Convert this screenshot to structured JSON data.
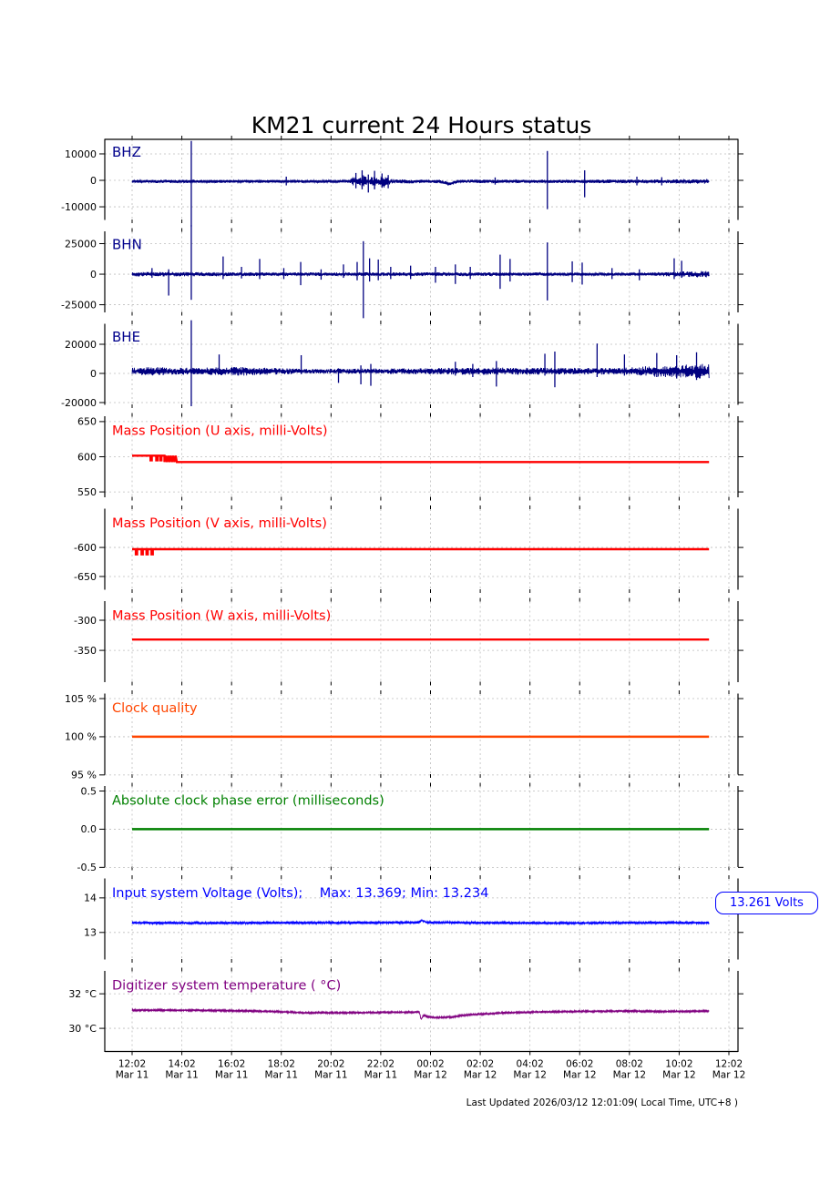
{
  "title": "KM21 current 24 Hours status",
  "footer": "Last Updated 2026/03/12 12:01:09( Local Time, UTC+8 )",
  "annotation": {
    "text": "13.261 Volts",
    "color": "#0000ff"
  },
  "chart_data": {
    "type": "line",
    "title": "KM21 current 24 Hours status",
    "grid": true,
    "x_axis": {
      "hours_span": 24,
      "data_end_hours": 23.2,
      "ticks": [
        {
          "time": "12:02",
          "date": "Mar 11"
        },
        {
          "time": "14:02",
          "date": "Mar 11"
        },
        {
          "time": "16:02",
          "date": "Mar 11"
        },
        {
          "time": "18:02",
          "date": "Mar 11"
        },
        {
          "time": "20:02",
          "date": "Mar 11"
        },
        {
          "time": "22:02",
          "date": "Mar 11"
        },
        {
          "time": "00:02",
          "date": "Mar 12"
        },
        {
          "time": "02:02",
          "date": "Mar 12"
        },
        {
          "time": "04:02",
          "date": "Mar 12"
        },
        {
          "time": "06:02",
          "date": "Mar 12"
        },
        {
          "time": "08:02",
          "date": "Mar 12"
        },
        {
          "time": "10:02",
          "date": "Mar 12"
        },
        {
          "time": "12:02",
          "date": "Mar 12"
        }
      ]
    },
    "subplots": [
      {
        "id": "bhz",
        "label": "BHZ",
        "color": "#000080",
        "label_color": "#00008b",
        "type": "band",
        "ylim": [
          15500,
          -14800
        ],
        "yticks": [
          {
            "v": 10000,
            "t": "10000"
          },
          {
            "v": 0,
            "t": "0"
          },
          {
            "v": -10000,
            "t": "-10000"
          }
        ],
        "baseline": [
          [
            0,
            -400
          ],
          [
            12.4,
            -400
          ],
          [
            12.6,
            -900
          ],
          [
            12.75,
            -1500
          ],
          [
            12.95,
            -800
          ],
          [
            13.2,
            -400
          ],
          [
            23.2,
            -400
          ]
        ],
        "envelope": [
          [
            0,
            600
          ],
          [
            2.3,
            650
          ],
          [
            5,
            550
          ],
          [
            8.7,
            550
          ],
          [
            8.9,
            1800
          ],
          [
            9.1,
            900
          ],
          [
            9.3,
            2600
          ],
          [
            9.5,
            1100
          ],
          [
            9.7,
            2000
          ],
          [
            9.9,
            1100
          ],
          [
            10.1,
            2600
          ],
          [
            10.3,
            1300
          ],
          [
            10.6,
            800
          ],
          [
            11.5,
            700
          ],
          [
            13,
            700
          ],
          [
            16,
            600
          ],
          [
            18,
            650
          ],
          [
            20,
            700
          ],
          [
            21.5,
            800
          ],
          [
            23.2,
            900
          ]
        ],
        "spikes": [
          [
            2.38,
            15300,
            17000
          ],
          [
            6.2,
            1800,
            1500
          ],
          [
            9.0,
            3200,
            2600
          ],
          [
            9.25,
            4200,
            3000
          ],
          [
            9.5,
            2600,
            4200
          ],
          [
            9.75,
            4000,
            3000
          ],
          [
            10.05,
            3000,
            2400
          ],
          [
            10.3,
            2400,
            2600
          ],
          [
            14.6,
            1500,
            1200
          ],
          [
            16.7,
            11500,
            10500
          ],
          [
            18.2,
            4200,
            6000
          ],
          [
            20.3,
            1800,
            1500
          ],
          [
            21.3,
            1600,
            1500
          ]
        ]
      },
      {
        "id": "bhn",
        "label": "BHN",
        "color": "#000080",
        "label_color": "#00008b",
        "type": "band",
        "ylim": [
          34700,
          -30900
        ],
        "yticks": [
          {
            "v": 25000,
            "t": "25000"
          },
          {
            "v": 0,
            "t": "0"
          },
          {
            "v": -25000,
            "t": "-25000"
          }
        ],
        "baseline": [
          [
            0,
            0
          ],
          [
            23.2,
            0
          ]
        ],
        "envelope": [
          [
            0,
            1800
          ],
          [
            2,
            1800
          ],
          [
            4,
            1600
          ],
          [
            6,
            1500
          ],
          [
            8,
            1400
          ],
          [
            10,
            1600
          ],
          [
            12,
            1500
          ],
          [
            14,
            1500
          ],
          [
            16,
            1400
          ],
          [
            18,
            1300
          ],
          [
            19.5,
            1200
          ],
          [
            21,
            1400
          ],
          [
            22,
            2200
          ],
          [
            22.8,
            2600
          ],
          [
            23.2,
            2600
          ]
        ],
        "spikes": [
          [
            0.8,
            5000,
            3000
          ],
          [
            1.47,
            4000,
            17500
          ],
          [
            2.38,
            40000,
            21000
          ],
          [
            3.66,
            14500,
            4000
          ],
          [
            4.4,
            6000,
            3500
          ],
          [
            5.13,
            12500,
            4000
          ],
          [
            6.1,
            5000,
            4000
          ],
          [
            6.78,
            10000,
            9000
          ],
          [
            7.6,
            4000,
            4500
          ],
          [
            8.5,
            8000,
            3000
          ],
          [
            9.05,
            10000,
            5000
          ],
          [
            9.3,
            27000,
            36000
          ],
          [
            9.55,
            13000,
            6000
          ],
          [
            9.9,
            12000,
            5000
          ],
          [
            10.4,
            6000,
            4000
          ],
          [
            11.2,
            7000,
            4000
          ],
          [
            12.2,
            6000,
            7000
          ],
          [
            13.0,
            8000,
            8000
          ],
          [
            13.6,
            6000,
            4000
          ],
          [
            14.8,
            16000,
            12000
          ],
          [
            15.2,
            12500,
            6000
          ],
          [
            16.7,
            26000,
            21500
          ],
          [
            17.7,
            10500,
            6500
          ],
          [
            18.1,
            9500,
            8500
          ],
          [
            19.3,
            5000,
            4000
          ],
          [
            20.4,
            4000,
            5000
          ],
          [
            21.8,
            13000,
            4000
          ],
          [
            22.1,
            11000,
            3000
          ]
        ]
      },
      {
        "id": "bhe",
        "label": "BHE",
        "color": "#000080",
        "label_color": "#00008b",
        "type": "band",
        "ylim": [
          33750,
          -21250
        ],
        "yticks": [
          {
            "v": 20000,
            "t": "20000"
          },
          {
            "v": 0,
            "t": "0"
          },
          {
            "v": -20000,
            "t": "-20000"
          }
        ],
        "baseline": [
          [
            0,
            1500
          ],
          [
            23.2,
            1500
          ]
        ],
        "envelope": [
          [
            0,
            2300
          ],
          [
            0.8,
            3000
          ],
          [
            1.5,
            2600
          ],
          [
            2.5,
            2400
          ],
          [
            3.5,
            2800
          ],
          [
            4.5,
            3000
          ],
          [
            5.5,
            2400
          ],
          [
            7,
            1700
          ],
          [
            9,
            1800
          ],
          [
            11,
            2000
          ],
          [
            13,
            2400
          ],
          [
            14.5,
            2600
          ],
          [
            16,
            2400
          ],
          [
            18,
            2300
          ],
          [
            19.5,
            2200
          ],
          [
            20.3,
            3000
          ],
          [
            21,
            3800
          ],
          [
            22,
            4500
          ],
          [
            23.2,
            5200
          ]
        ],
        "spikes": [
          [
            2.38,
            35000,
            24000
          ],
          [
            3.5,
            11500,
            2000
          ],
          [
            6.8,
            11000,
            2000
          ],
          [
            8.3,
            2000,
            8000
          ],
          [
            9.2,
            4000,
            9000
          ],
          [
            9.6,
            5000,
            10000
          ],
          [
            13.0,
            6500,
            3000
          ],
          [
            13.7,
            5000,
            4000
          ],
          [
            14.65,
            7000,
            10500
          ],
          [
            16.6,
            12000,
            3000
          ],
          [
            17.0,
            13500,
            11000
          ],
          [
            18.7,
            19000,
            4000
          ],
          [
            19.8,
            11500,
            3000
          ],
          [
            21.1,
            12500,
            4000
          ],
          [
            21.9,
            11000,
            5000
          ],
          [
            22.7,
            13000,
            6000
          ]
        ]
      },
      {
        "id": "mass-u",
        "label": "Mass Position (U axis, milli-Volts)",
        "color": "#ff0000",
        "type": "poly",
        "lw": 2.4,
        "label_size": 14.5,
        "ylim": [
          657,
          543
        ],
        "yticks": [
          {
            "v": 650,
            "t": "650"
          },
          {
            "v": 600,
            "t": "600"
          },
          {
            "v": 550,
            "t": "550"
          }
        ],
        "points": [
          [
            0,
            601.5
          ],
          [
            0.74,
            601.5
          ],
          [
            0.74,
            595
          ],
          [
            0.79,
            595
          ],
          [
            0.79,
            601.5
          ],
          [
            0.97,
            601.5
          ],
          [
            0.97,
            595
          ],
          [
            1.02,
            595
          ],
          [
            1.02,
            601.5
          ],
          [
            1.13,
            601.5
          ],
          [
            1.13,
            595
          ],
          [
            1.18,
            595
          ],
          [
            1.18,
            601.5
          ],
          [
            1.3,
            601.5
          ],
          [
            1.3,
            592.5
          ],
          [
            1.35,
            601.5
          ],
          [
            1.4,
            592.5
          ],
          [
            1.45,
            601.5
          ],
          [
            1.5,
            592.5
          ],
          [
            1.55,
            601.5
          ],
          [
            1.6,
            592.5
          ],
          [
            1.65,
            601.5
          ],
          [
            1.7,
            592.5
          ],
          [
            1.75,
            601.5
          ],
          [
            1.8,
            592.5
          ],
          [
            23.2,
            592.5
          ]
        ]
      },
      {
        "id": "mass-v",
        "label": "Mass Position (V axis, milli-Volts)",
        "color": "#ff0000",
        "type": "poly",
        "lw": 2.4,
        "label_size": 14.5,
        "ylim": [
          -534,
          -672
        ],
        "yticks": [
          {
            "v": -600,
            "t": "-600"
          },
          {
            "v": -650,
            "t": "-650"
          }
        ],
        "points": [
          [
            0,
            -603
          ],
          [
            0.15,
            -603
          ],
          [
            0.15,
            -612
          ],
          [
            0.2,
            -612
          ],
          [
            0.2,
            -603
          ],
          [
            0.38,
            -603
          ],
          [
            0.38,
            -612
          ],
          [
            0.43,
            -612
          ],
          [
            0.43,
            -603
          ],
          [
            0.58,
            -603
          ],
          [
            0.58,
            -612
          ],
          [
            0.63,
            -612
          ],
          [
            0.63,
            -603
          ],
          [
            0.78,
            -603
          ],
          [
            0.78,
            -612
          ],
          [
            0.83,
            -612
          ],
          [
            0.83,
            -603
          ],
          [
            23.2,
            -603
          ]
        ]
      },
      {
        "id": "mass-w",
        "label": "Mass Position (W axis, milli-Volts)",
        "color": "#ff0000",
        "type": "poly",
        "lw": 2.4,
        "label_size": 14.5,
        "ylim": [
          -269,
          -402
        ],
        "yticks": [
          {
            "v": -300,
            "t": "-300"
          },
          {
            "v": -350,
            "t": "-350"
          }
        ],
        "points": [
          [
            0,
            -332
          ],
          [
            23.2,
            -332
          ]
        ]
      },
      {
        "id": "clock-quality",
        "label": "Clock quality",
        "color": "#ff4500",
        "type": "poly",
        "lw": 2.5,
        "label_size": 14.5,
        "ylim": [
          105.6,
          95.1
        ],
        "yticks": [
          {
            "v": 105,
            "t": "105 %"
          },
          {
            "v": 100,
            "t": "100 %"
          },
          {
            "v": 95,
            "t": "95 %"
          }
        ],
        "points": [
          [
            0,
            100
          ],
          [
            23.2,
            100
          ]
        ]
      },
      {
        "id": "clock-phase-error",
        "label": "Absolute clock phase error (milliseconds)",
        "color": "#008000",
        "type": "poly",
        "lw": 2.5,
        "label_size": 14.5,
        "ylim": [
          0.56,
          -0.49
        ],
        "yticks": [
          {
            "v": 0.5,
            "t": "0.5"
          },
          {
            "v": 0.0,
            "t": "0.0"
          },
          {
            "v": -0.5,
            "t": "-0.5"
          }
        ],
        "points": [
          [
            0,
            0
          ],
          [
            23.2,
            0
          ]
        ]
      },
      {
        "id": "voltage",
        "label": "Input system Voltage (Volts);    Max: 13.369; Min: 13.234",
        "color": "#0000ff",
        "type": "band",
        "label_size": 14.5,
        "ylim": [
          14.55,
          12.23
        ],
        "yticks": [
          {
            "v": 14,
            "t": "14"
          },
          {
            "v": 13,
            "t": "13"
          }
        ],
        "baseline": [
          [
            0,
            13.28
          ],
          [
            3,
            13.27
          ],
          [
            6,
            13.28
          ],
          [
            9,
            13.28
          ],
          [
            11.5,
            13.29
          ],
          [
            11.65,
            13.35
          ],
          [
            11.85,
            13.29
          ],
          [
            14,
            13.28
          ],
          [
            17,
            13.27
          ],
          [
            20,
            13.28
          ],
          [
            23.2,
            13.28
          ]
        ],
        "envelope": 0.035,
        "spikes": []
      },
      {
        "id": "temperature",
        "label": "Digitizer system temperature ( °C)",
        "color": "#800080",
        "type": "band",
        "label_size": 14.5,
        "ylim": [
          33.3,
          28.66
        ],
        "yticks": [
          {
            "v": 32,
            "t": "32 °C"
          },
          {
            "v": 30,
            "t": "30 °C"
          }
        ],
        "baseline": [
          [
            0,
            31.05
          ],
          [
            2,
            31.05
          ],
          [
            4,
            31.02
          ],
          [
            5.5,
            30.98
          ],
          [
            7,
            30.9
          ],
          [
            8.5,
            30.9
          ],
          [
            10,
            30.92
          ],
          [
            11.3,
            30.94
          ],
          [
            11.55,
            30.94
          ],
          [
            11.62,
            30.5
          ],
          [
            11.72,
            30.78
          ],
          [
            11.85,
            30.68
          ],
          [
            12.2,
            30.62
          ],
          [
            12.8,
            30.65
          ],
          [
            13.5,
            30.78
          ],
          [
            15,
            30.9
          ],
          [
            16.5,
            30.95
          ],
          [
            18,
            30.98
          ],
          [
            20,
            31.0
          ],
          [
            21.5,
            30.97
          ],
          [
            23.2,
            31.0
          ]
        ],
        "envelope": 0.06,
        "spikes": []
      }
    ]
  }
}
